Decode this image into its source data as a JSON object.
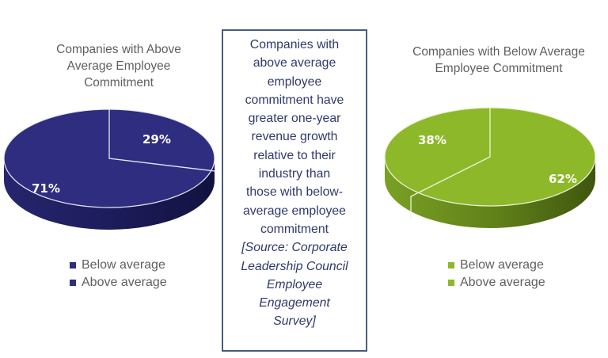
{
  "chart_data": [
    {
      "type": "pie",
      "title": "Companies with Above Average Employee Commitment",
      "categories": [
        "Below average",
        "Above average"
      ],
      "values": [
        29,
        71
      ],
      "data_labels": [
        "29%",
        "71%"
      ],
      "legend": "bottom",
      "color": "#2e2d7f",
      "style": "3d"
    },
    {
      "type": "pie",
      "title": "Companies with Below Average Employee Commitment",
      "categories": [
        "Below average",
        "Above average"
      ],
      "values": [
        62,
        38
      ],
      "data_labels": [
        "62%",
        "38%"
      ],
      "legend": "bottom",
      "color": "#8db82a",
      "style": "3d"
    }
  ],
  "left": {
    "title_lines": [
      "Companies with Above",
      "Average Employee",
      "Commitment"
    ],
    "legend": [
      "Below average",
      "Above average"
    ],
    "labels": {
      "small": "29%",
      "large": "71%"
    },
    "color": "#2e2d7f"
  },
  "right": {
    "title_lines": [
      "Companies with Below Average",
      "Employee Commitment"
    ],
    "legend": [
      "Below average",
      "Above average"
    ],
    "labels": {
      "small": "38%",
      "large": "62%"
    },
    "color": "#8db82a"
  },
  "callout": {
    "lines": [
      "Companies with",
      "above average",
      "employee",
      "commitment have",
      "greater one-year",
      "revenue growth",
      "relative to their",
      "industry than",
      "those with below-",
      "average employee",
      "commitment"
    ],
    "source_lines": [
      "[Source: Corporate",
      "Leadership Council",
      "Employee",
      "Engagement",
      "Survey]"
    ]
  }
}
